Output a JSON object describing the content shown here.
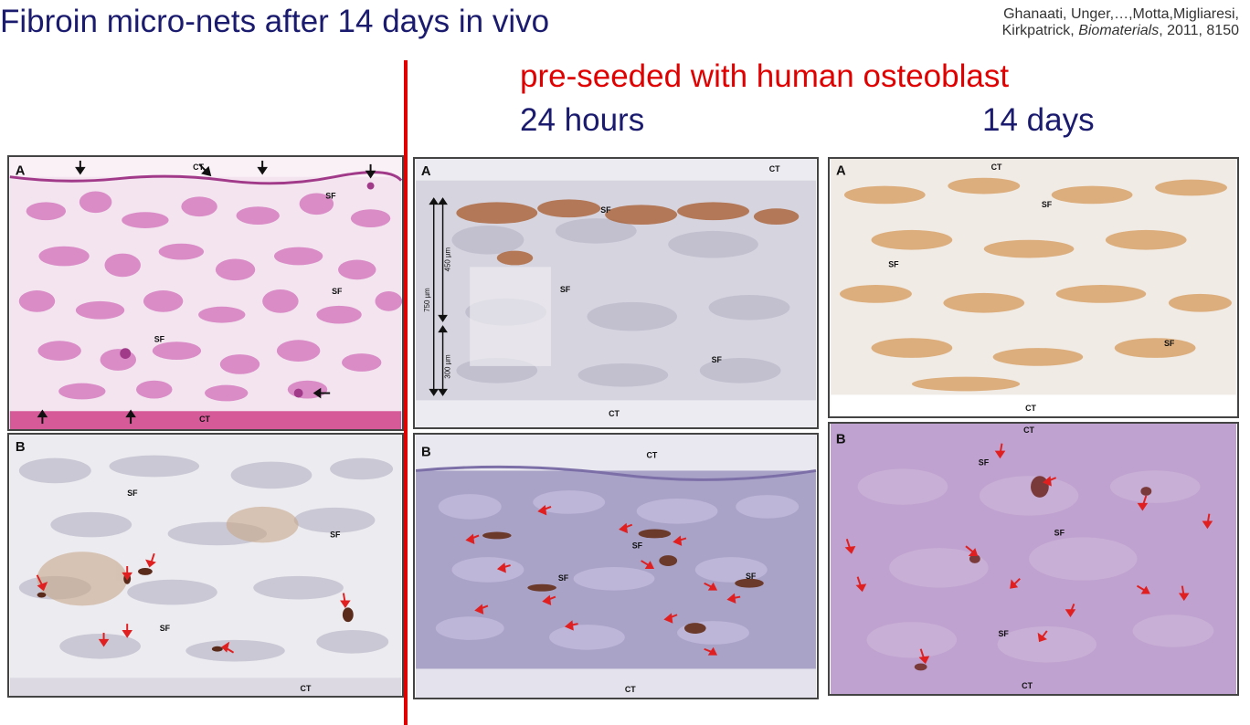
{
  "slide": {
    "title": "Fibroin micro-nets after 14 days in vivo",
    "citation": {
      "line1": "Ghanaati, Unger,…,Motta,Migliaresi,",
      "line2_authors": "Kirkpatrick, ",
      "line2_journal": "Biomaterials",
      "line2_rest": ", 2011, 8150"
    },
    "subtitle": "pre-seeded with human osteoblast",
    "time_24h": "24 hours",
    "time_14d": "14 days",
    "accent_color": "#e00000",
    "heading_color": "#1a1a6e"
  },
  "panels": [
    {
      "letter": "A",
      "tissue_labels": [
        "CT",
        "SF",
        "SF",
        "SF",
        "CT"
      ],
      "stain": "H&E pink",
      "arrow_color": "black"
    },
    {
      "letter": "B",
      "tissue_labels": [
        "SF",
        "SF",
        "SF",
        "CT"
      ],
      "stain": "immunohistochemistry grey",
      "arrow_color": "red"
    },
    {
      "letter": "A",
      "tissue_labels": [
        "CT",
        "SF",
        "SF",
        "SF",
        "CT"
      ],
      "scale_labels": [
        "750 µm",
        "450 µm",
        "300 µm"
      ],
      "stain": "immunohistochemistry blue-grey with brown"
    },
    {
      "letter": "B",
      "tissue_labels": [
        "CT",
        "SF",
        "SF",
        "SF",
        "CT"
      ],
      "stain": "immunohistochemistry purple",
      "arrow_color": "red"
    },
    {
      "letter": "A",
      "tissue_labels": [
        "CT",
        "SF",
        "SF",
        "SF",
        "CT"
      ],
      "stain": "immunohistochemistry brown network"
    },
    {
      "letter": "B",
      "tissue_labels": [
        "CT",
        "SF",
        "SF",
        "SF",
        "CT"
      ],
      "stain": "immunohistochemistry pink-purple",
      "arrow_color": "red"
    }
  ]
}
